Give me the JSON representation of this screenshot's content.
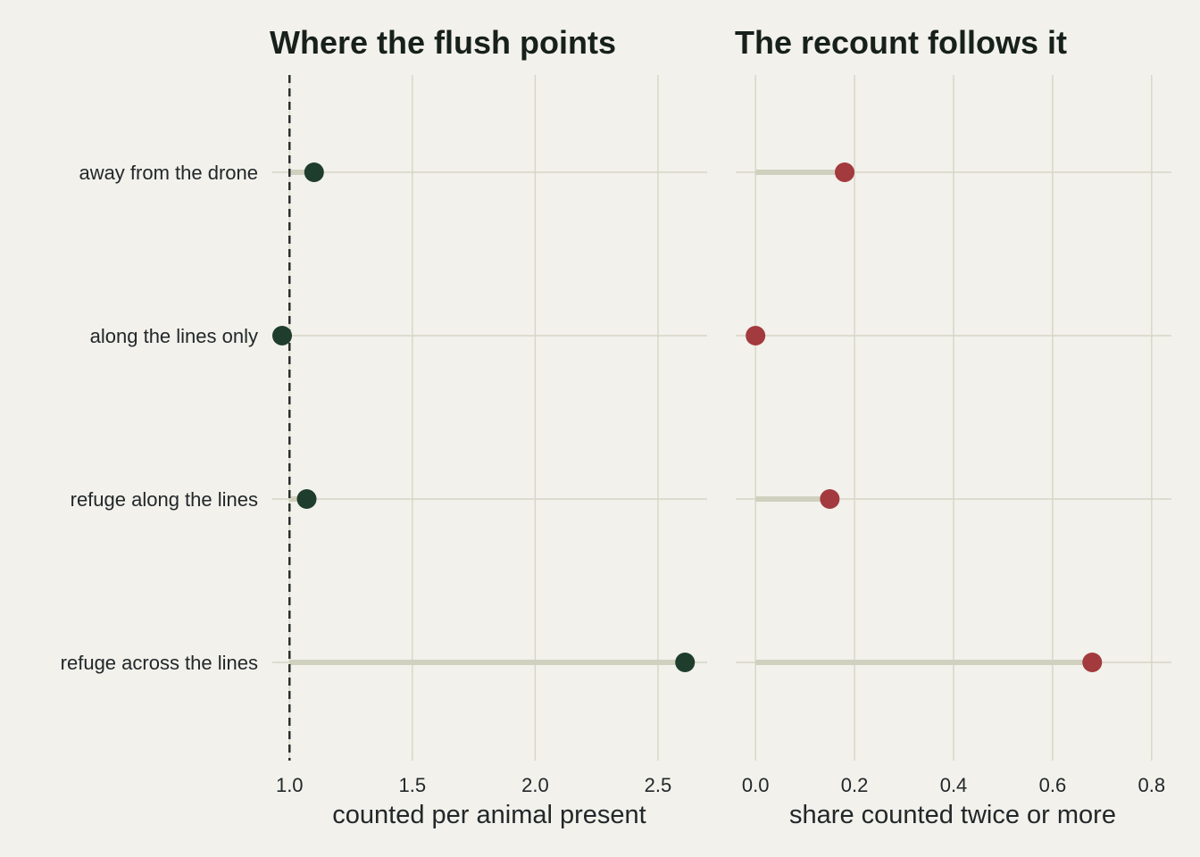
{
  "categories": [
    "away from the drone",
    "along the lines only",
    "refuge along the lines",
    "refuge across the lines"
  ],
  "colors": {
    "background": "#f2f1eb",
    "grid": "#d6d6c6",
    "stem": "#d0d0bf",
    "left_point": "#1f3d2c",
    "right_point": "#a33a3d",
    "reference_line": "#2a2f2c",
    "text": "#22272a"
  },
  "chart_data": [
    {
      "type": "lollipop",
      "title": "Where the flush points",
      "xlabel": "counted per animal present",
      "ylabel": "",
      "categories": [
        "away from the drone",
        "along the lines only",
        "refuge along the lines",
        "refuge across the lines"
      ],
      "values": [
        1.1,
        0.97,
        1.07,
        2.61
      ],
      "baseline": 1.0,
      "reference_line": 1.0,
      "xlim": [
        0.93,
        2.7
      ],
      "xticks": [
        1.0,
        1.5,
        2.0,
        2.5
      ],
      "xtick_labels": [
        "1.0",
        "1.5",
        "2.0",
        "2.5"
      ],
      "grid": true,
      "legend": "none"
    },
    {
      "type": "lollipop",
      "title": "The recount follows it",
      "xlabel": "share counted twice or more",
      "ylabel": "",
      "categories": [
        "away from the drone",
        "along the lines only",
        "refuge along the lines",
        "refuge across the lines"
      ],
      "values": [
        0.18,
        0.0,
        0.15,
        0.68
      ],
      "baseline": 0.0,
      "xlim": [
        -0.04,
        0.84
      ],
      "xticks": [
        0.0,
        0.2,
        0.4,
        0.6,
        0.8
      ],
      "xtick_labels": [
        "0.0",
        "0.2",
        "0.4",
        "0.6",
        "0.8"
      ],
      "grid": true,
      "legend": "none"
    }
  ]
}
